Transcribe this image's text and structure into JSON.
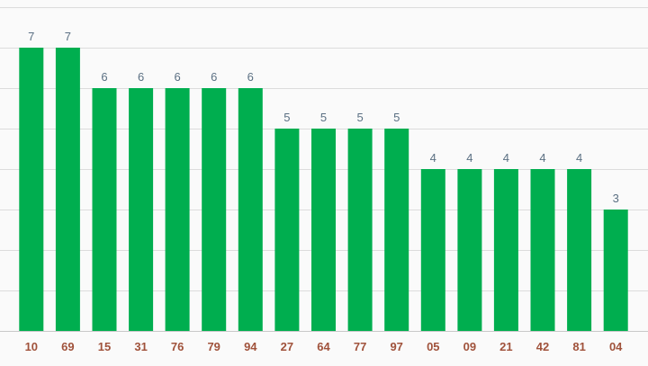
{
  "chart_data": {
    "type": "bar",
    "categories": [
      "10",
      "69",
      "15",
      "31",
      "76",
      "79",
      "94",
      "27",
      "64",
      "77",
      "97",
      "05",
      "09",
      "21",
      "42",
      "81",
      "04"
    ],
    "values": [
      7,
      7,
      6,
      6,
      6,
      6,
      6,
      5,
      5,
      5,
      5,
      4,
      4,
      4,
      4,
      4,
      3
    ],
    "title": "",
    "xlabel": "",
    "ylabel": "",
    "ylim": [
      0,
      8
    ],
    "grid": true,
    "data_labels": true,
    "colors": {
      "bar": "#00ae4f",
      "value_label": "#5b7083",
      "category_label": "#a0523b",
      "grid": "#dcdcdc",
      "background": "#fafafa"
    }
  }
}
